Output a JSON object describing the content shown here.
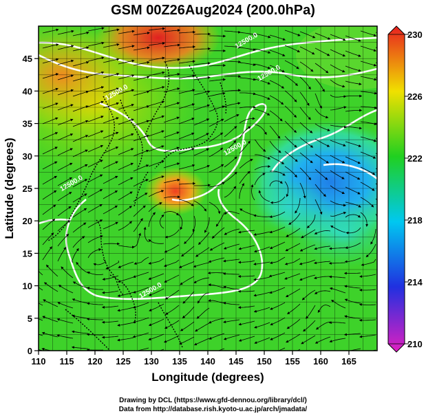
{
  "title": "GSM 00Z26Aug2024 (200.0hPa)",
  "x_axis": {
    "label": "Longitude (degrees)",
    "ticks": [
      "110",
      "115",
      "120",
      "125",
      "130",
      "135",
      "140",
      "145",
      "150",
      "155",
      "160",
      "165"
    ],
    "range": [
      110,
      170
    ]
  },
  "y_axis": {
    "label": "Latitude (degrees)",
    "ticks": [
      "0",
      "5",
      "10",
      "15",
      "20",
      "25",
      "30",
      "35",
      "40",
      "45"
    ],
    "range": [
      0,
      50
    ]
  },
  "colorbar": {
    "labels": [
      "210",
      "214",
      "218",
      "222",
      "226",
      "230"
    ],
    "min": 210,
    "max": 230,
    "colors": [
      "#e020c0",
      "#2030e0",
      "#00c8f0",
      "#20d020",
      "#f0e000",
      "#e82020"
    ]
  },
  "contour_labels": [
    {
      "text": "12500.0",
      "lon": 147,
      "lat": 47.5
    },
    {
      "text": "12500.0",
      "lon": 151,
      "lat": 42.5
    },
    {
      "text": "12500.0",
      "lon": 124,
      "lat": 39.5
    },
    {
      "text": "12500.0",
      "lon": 145,
      "lat": 31
    },
    {
      "text": "12500.0",
      "lon": 116,
      "lat": 25.5
    },
    {
      "text": "12500.0",
      "lon": 130,
      "lat": 9
    }
  ],
  "credits": {
    "line1": "Drawing by DCL (https://www.gfd-dennou.org/library/dcl/)",
    "line2": "Data from http://database.rish.kyoto-u.ac.jp/arch/jmadata/"
  }
}
